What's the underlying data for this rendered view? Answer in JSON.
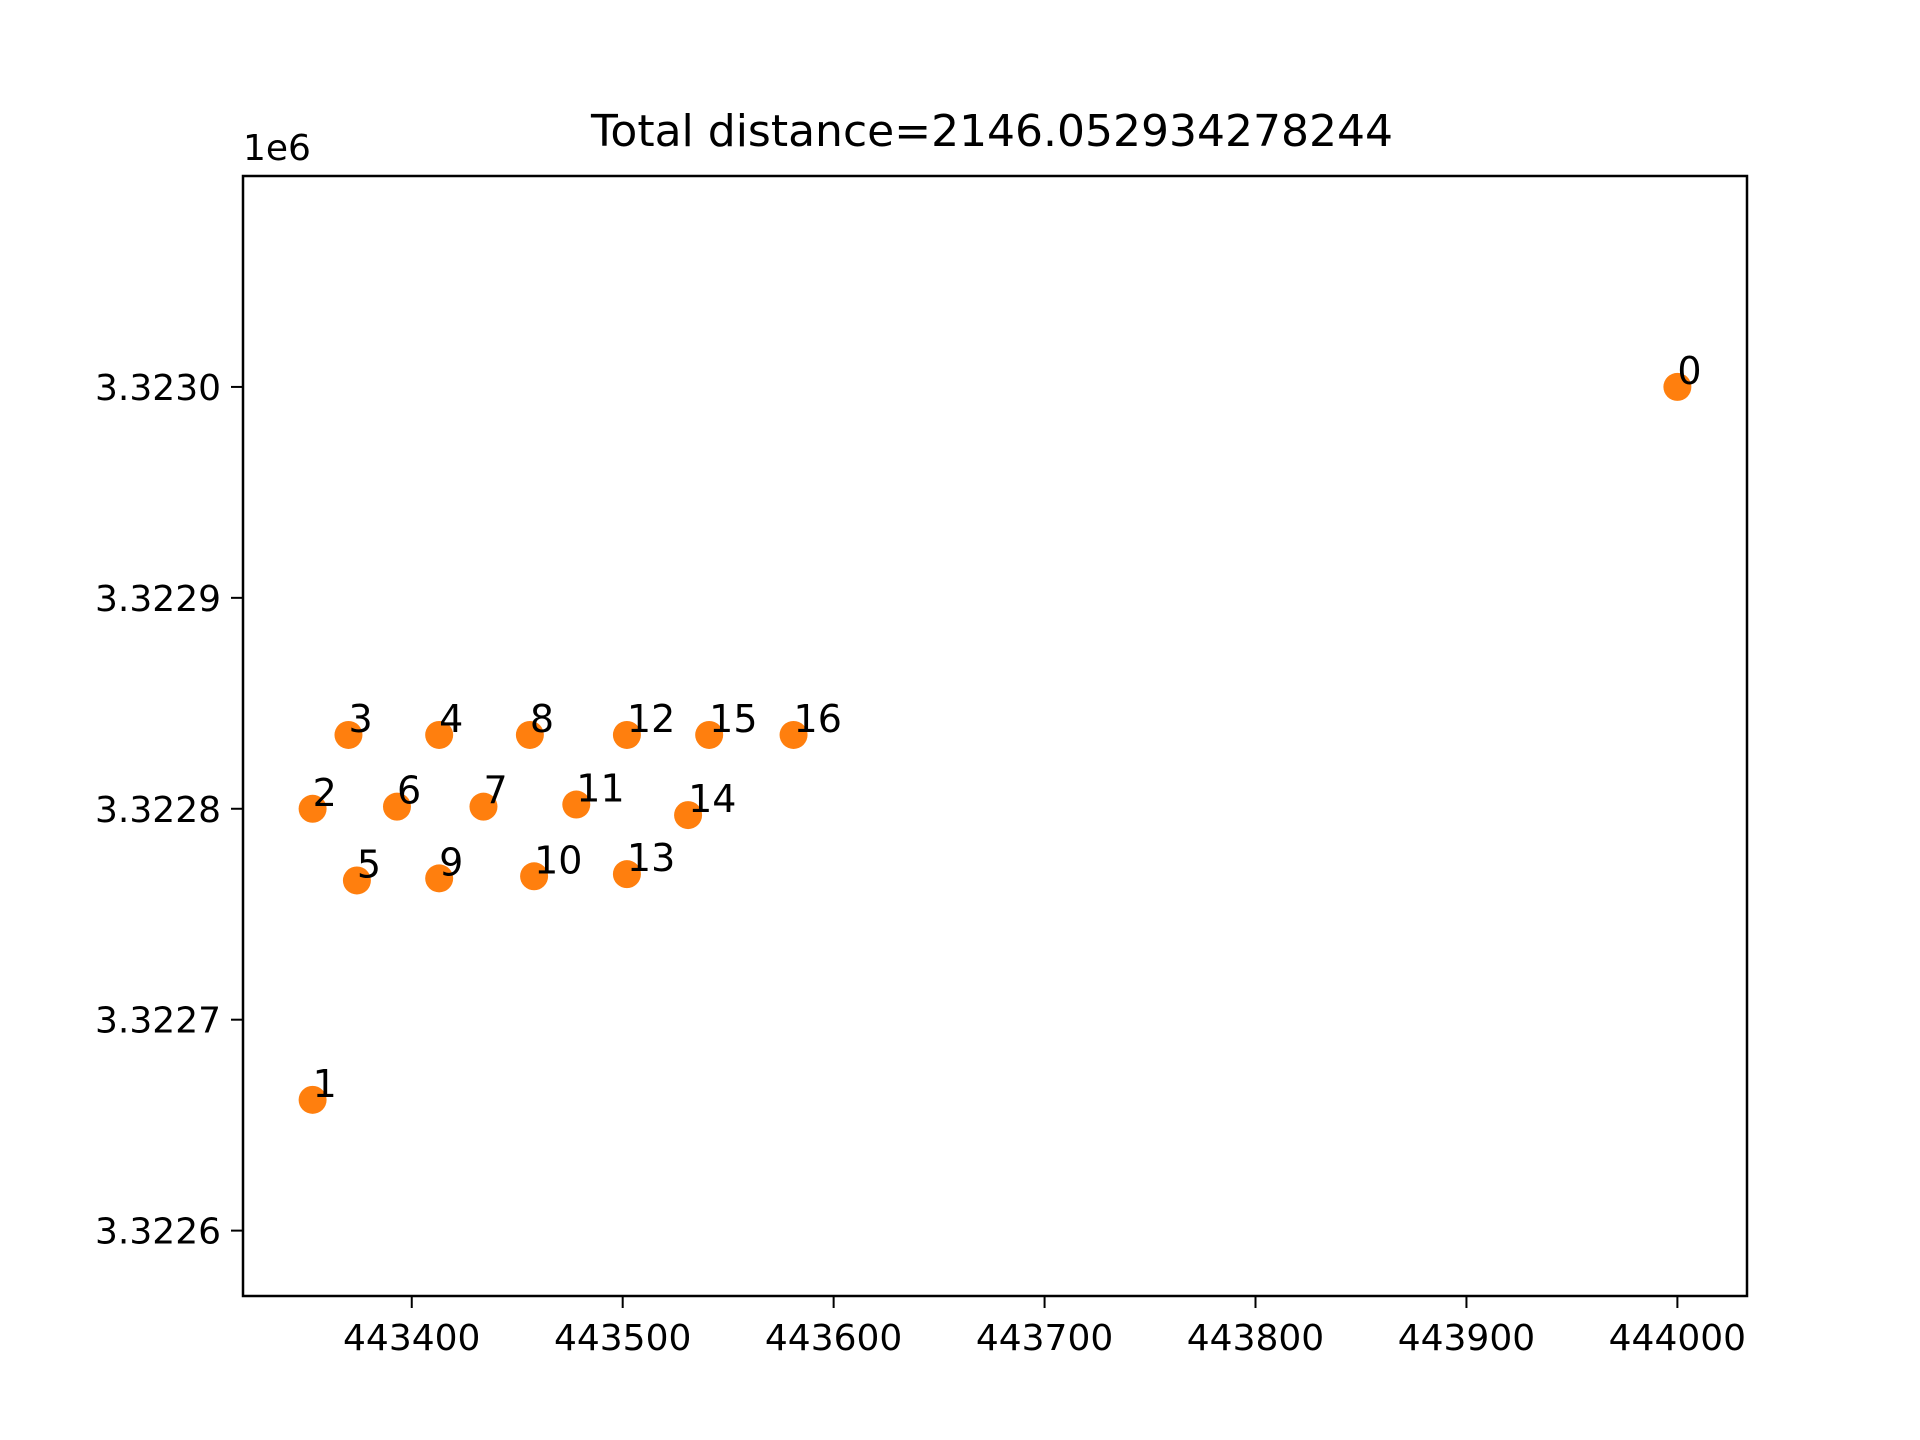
{
  "chart_data": {
    "type": "scatter",
    "title": "Total distance=2146.052934278244",
    "xlabel": "",
    "ylabel": "",
    "y_offset_text": "1e6",
    "xlim": [
      443320,
      444033
    ],
    "ylim": [
      3322569,
      3323100
    ],
    "x_ticks": [
      443400,
      443500,
      443600,
      443700,
      443800,
      443900,
      444000
    ],
    "x_tick_labels": [
      "443400",
      "443500",
      "443600",
      "443700",
      "443800",
      "443900",
      "444000"
    ],
    "y_ticks": [
      3322600,
      3322700,
      3322800,
      3322900,
      3323000
    ],
    "y_tick_labels": [
      "3.3226",
      "3.3227",
      "3.3228",
      "3.3229",
      "3.3230"
    ],
    "grid": false,
    "legend": "none",
    "marker_color": "#ff7f0e",
    "points": [
      {
        "label": "0",
        "x": 444000,
        "y": 3323000
      },
      {
        "label": "1",
        "x": 443353,
        "y": 3322662
      },
      {
        "label": "2",
        "x": 443353,
        "y": 3322800
      },
      {
        "label": "3",
        "x": 443370,
        "y": 3322835
      },
      {
        "label": "4",
        "x": 443413,
        "y": 3322835
      },
      {
        "label": "5",
        "x": 443374,
        "y": 3322766
      },
      {
        "label": "6",
        "x": 443393,
        "y": 3322801
      },
      {
        "label": "7",
        "x": 443434,
        "y": 3322801
      },
      {
        "label": "8",
        "x": 443456,
        "y": 3322835
      },
      {
        "label": "9",
        "x": 443413,
        "y": 3322767
      },
      {
        "label": "10",
        "x": 443458,
        "y": 3322768
      },
      {
        "label": "11",
        "x": 443478,
        "y": 3322802
      },
      {
        "label": "12",
        "x": 443502,
        "y": 3322835
      },
      {
        "label": "13",
        "x": 443502,
        "y": 3322769
      },
      {
        "label": "14",
        "x": 443531,
        "y": 3322797
      },
      {
        "label": "15",
        "x": 443541,
        "y": 3322835
      },
      {
        "label": "16",
        "x": 443581,
        "y": 3322835
      }
    ]
  }
}
